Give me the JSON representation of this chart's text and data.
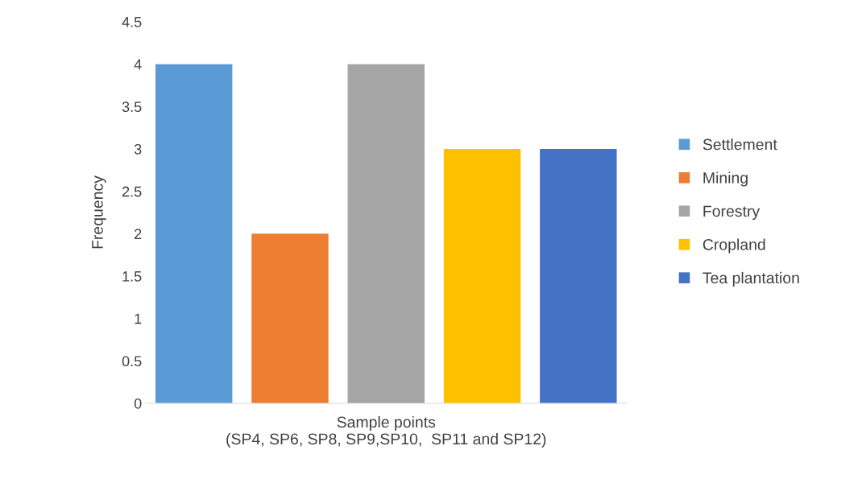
{
  "chart_data": {
    "type": "bar",
    "xlabel": "Sample points\n(SP4, SP6, SP8, SP9,SP10,  SP11 and SP12)",
    "ylabel": "Frequency",
    "categories": [
      null
    ],
    "series": [
      {
        "name": "Settlement",
        "color": "#5b9bd5",
        "values": [
          4
        ]
      },
      {
        "name": "Mining",
        "color": "#ed7d31",
        "values": [
          2
        ]
      },
      {
        "name": "Forestry",
        "color": "#a5a5a5",
        "values": [
          4
        ]
      },
      {
        "name": "Cropland",
        "color": "#ffc000",
        "values": [
          3
        ]
      },
      {
        "name": "Tea plantation",
        "color": "#4472c4",
        "values": [
          3
        ]
      }
    ],
    "ylim": [
      0,
      4.5
    ],
    "yticks": [
      0,
      0.5,
      1,
      1.5,
      2,
      2.5,
      3,
      3.5,
      4,
      4.5
    ],
    "grid": false,
    "legend": "right"
  }
}
